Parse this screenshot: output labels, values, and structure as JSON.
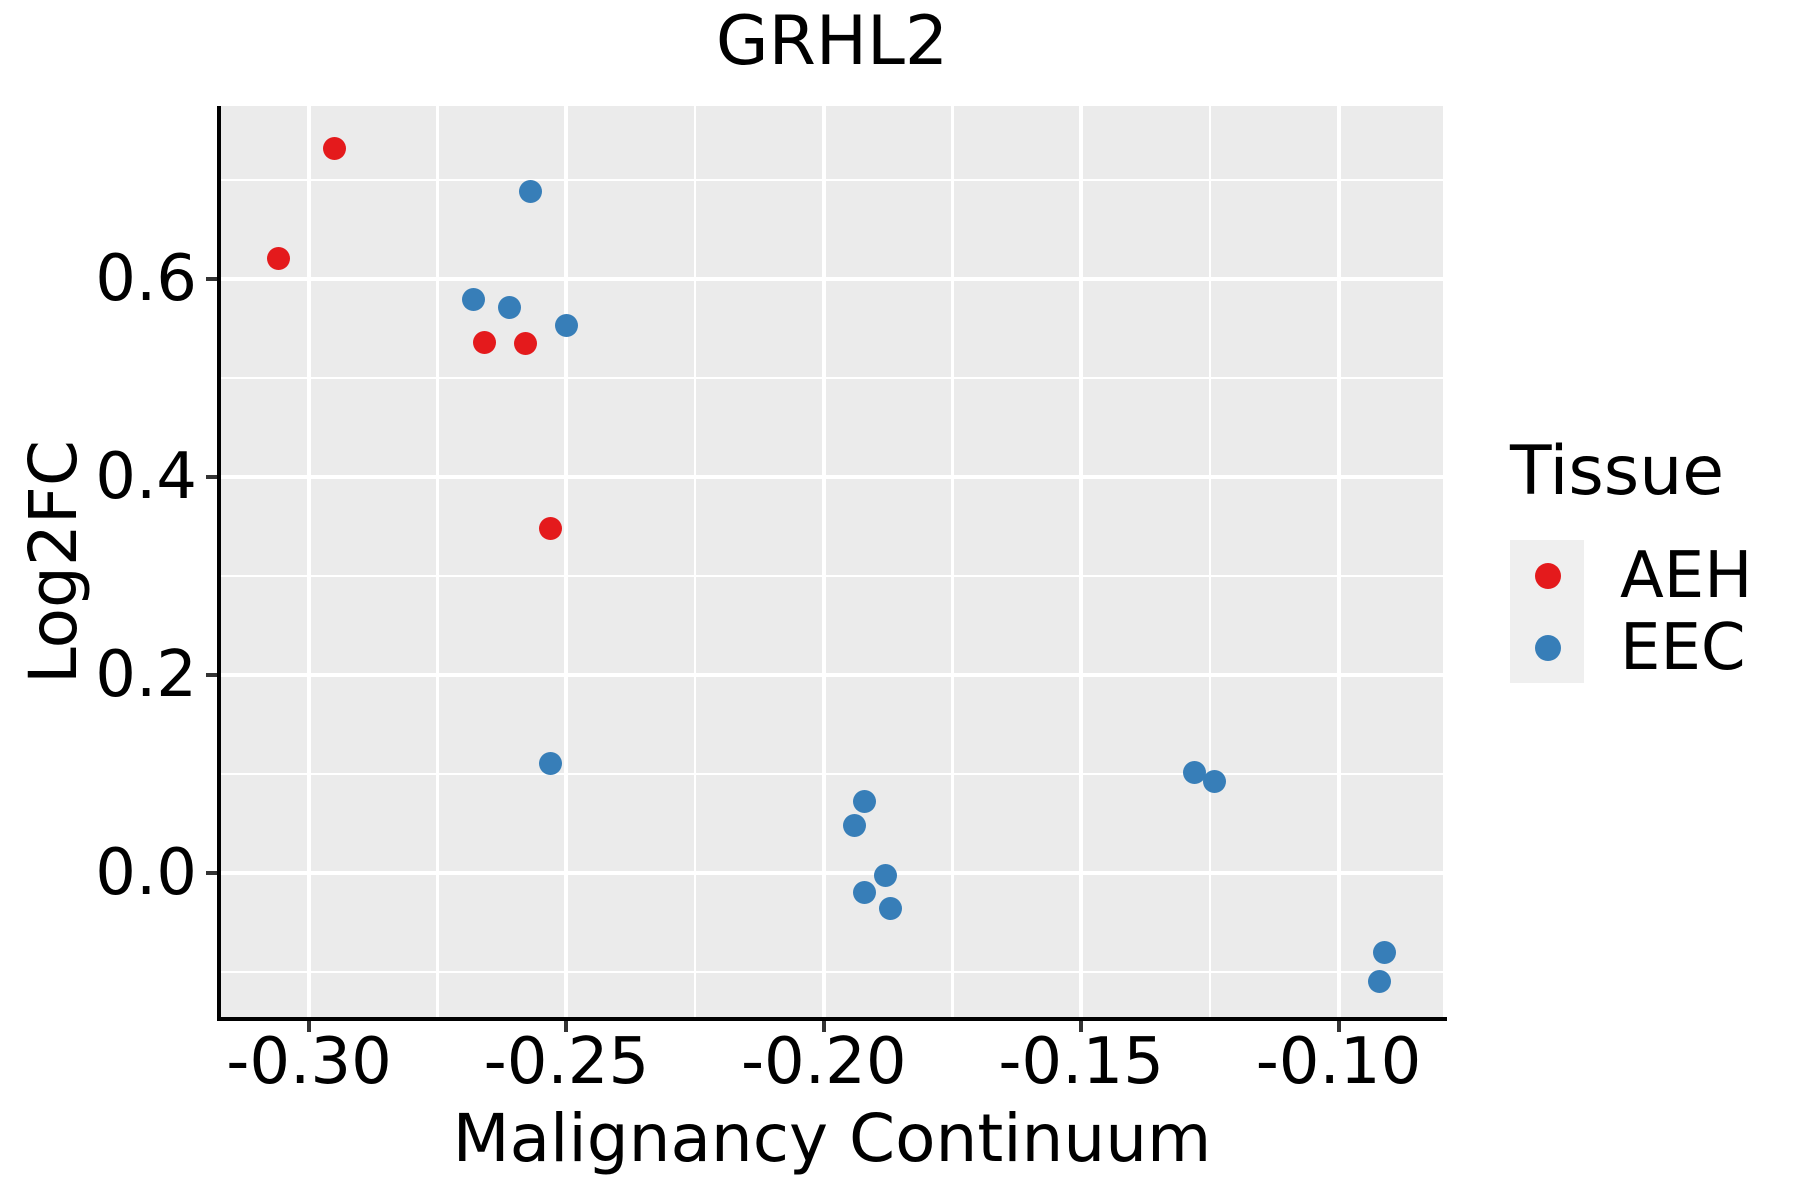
{
  "chart_data": {
    "type": "scatter",
    "title": "GRHL2",
    "xlabel": "Malignancy Continuum",
    "ylabel": "Log2FC",
    "xlim": [
      -0.3171,
      -0.0797
    ],
    "ylim": [
      -0.1475,
      0.7747
    ],
    "x_ticks": {
      "values": [
        -0.3,
        -0.25,
        -0.2,
        -0.15,
        -0.1
      ],
      "labels": [
        "-0.30",
        "-0.25",
        "-0.20",
        "-0.15",
        "-0.10"
      ]
    },
    "y_ticks": {
      "values": [
        0.0,
        0.2,
        0.4,
        0.6
      ],
      "labels": [
        "0.0",
        "0.2",
        "0.4",
        "0.6"
      ]
    },
    "grid": {
      "major": true,
      "minor": true
    },
    "legend": {
      "title": "Tissue",
      "position": "right",
      "entries": [
        {
          "label": "AEH",
          "color": "#E41A1C"
        },
        {
          "label": "EEC",
          "color": "#377EB8"
        }
      ]
    },
    "series": [
      {
        "name": "AEH",
        "color": "#E41A1C",
        "points": [
          [
            -0.295,
            0.732
          ],
          [
            -0.306,
            0.621
          ],
          [
            -0.266,
            0.536
          ],
          [
            -0.258,
            0.535
          ],
          [
            -0.253,
            0.348
          ]
        ]
      },
      {
        "name": "EEC",
        "color": "#377EB8",
        "points": [
          [
            -0.257,
            0.688
          ],
          [
            -0.268,
            0.579
          ],
          [
            -0.261,
            0.571
          ],
          [
            -0.25,
            0.553
          ],
          [
            -0.253,
            0.111
          ],
          [
            -0.192,
            0.072
          ],
          [
            -0.194,
            0.048
          ],
          [
            -0.188,
            -0.003
          ],
          [
            -0.192,
            -0.02
          ],
          [
            -0.187,
            -0.036
          ],
          [
            -0.128,
            0.101
          ],
          [
            -0.124,
            0.092
          ],
          [
            -0.091,
            -0.08
          ],
          [
            -0.092,
            -0.11
          ]
        ]
      }
    ],
    "style": {
      "panel_background": "#EBEBEB",
      "grid_color": "#FFFFFF",
      "axis_color": "#000000",
      "tick_color": "#333333",
      "text_color": "#000000",
      "legend_key_fill": "#EFEFEF"
    }
  }
}
